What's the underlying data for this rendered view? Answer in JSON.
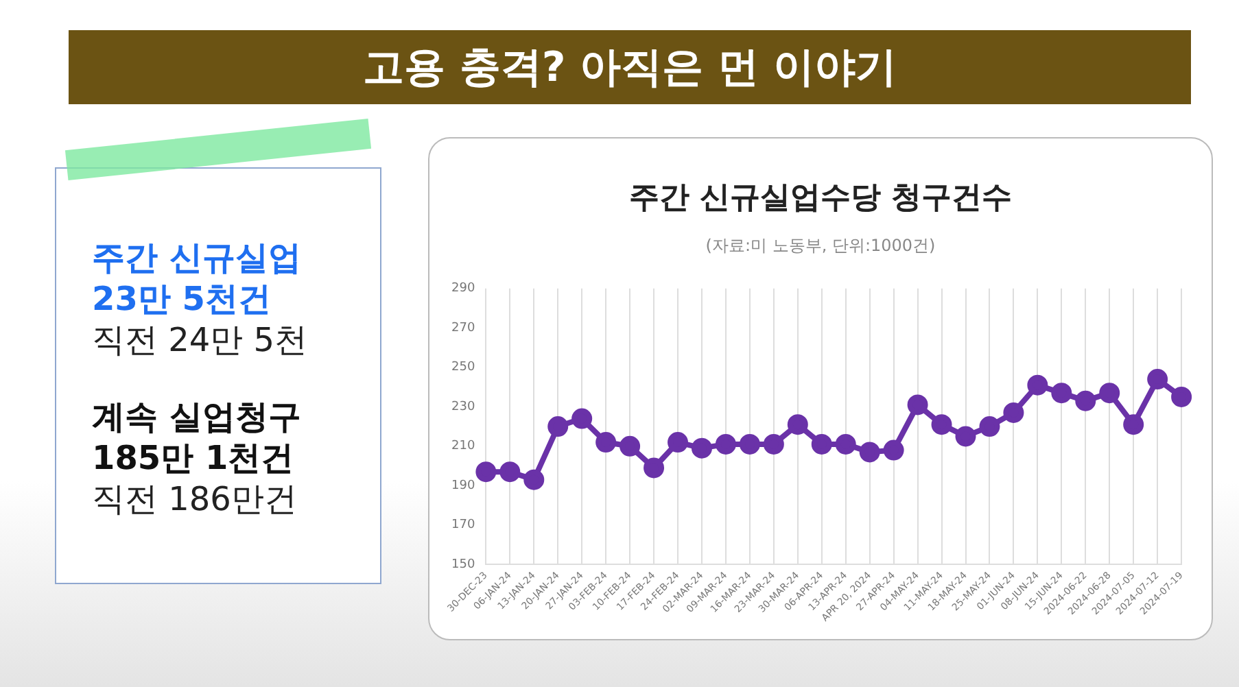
{
  "chart_data": {
    "type": "line",
    "title": "주간 신규실업수당 청구건수",
    "subtitle": "(자료:미 노동부, 단위:1000건)",
    "annotations": [
      "고용 충격? 아직은 먼 이야기",
      "주간 신규실업",
      "23만 5천건",
      "직전 24만 5천",
      "계속 실업청구",
      "185만 1천건",
      "직전 186만건"
    ],
    "categories": [
      "30-DEC-23",
      "06-JAN-24",
      "13-JAN-24",
      "20-JAN-24",
      "27-JAN-24",
      "03-FEB-24",
      "10-FEB-24",
      "17-FEB-24",
      "24-FEB-24",
      "02-MAR-24",
      "09-MAR-24",
      "16-MAR-24",
      "23-MAR-24",
      "30-MAR-24",
      "06-APR-24",
      "13-APR-24",
      "APR 20, 2024",
      "27-APR-24",
      "04-MAY-24",
      "11-MAY-24",
      "18-MAY-24",
      "25-MAY-24",
      "01-JUN-24",
      "08-JUN-24",
      "15-JUN-24",
      "2024-06-22",
      "2024-06-28",
      "2024-07-05",
      "2024-07-12",
      "2024-07-19"
    ],
    "series": [
      {
        "color": "#6a32a8",
        "values": [
          197,
          197,
          193,
          220,
          224,
          212,
          210,
          199,
          212,
          209,
          211,
          211,
          211,
          221,
          211,
          211,
          207,
          208,
          231,
          221,
          215,
          220,
          227,
          241,
          237,
          233,
          237,
          221,
          244,
          235
        ]
      }
    ],
    "ylim": [
      150,
      290
    ],
    "yticks": [
      150,
      170,
      190,
      210,
      230,
      250,
      270,
      290
    ],
    "grid": "x",
    "marker": "circle",
    "line_style": "solid",
    "legend": false
  }
}
